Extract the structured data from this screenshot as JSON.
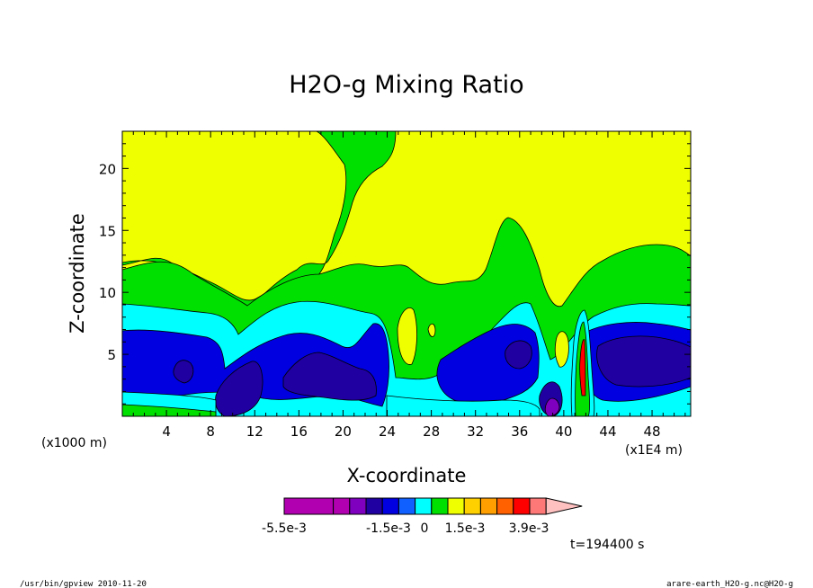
{
  "chart_data": {
    "type": "heatmap",
    "title": "H2O-g Mixing Ratio",
    "xlabel": "X-coordinate",
    "ylabel": "Z-coordinate",
    "x_unit_note": "(x1E4 m)",
    "y_unit_note": "(x1000 m)",
    "xlim": [
      0,
      51.5
    ],
    "ylim": [
      0,
      23
    ],
    "x_ticks": [
      "4",
      "8",
      "12",
      "16",
      "20",
      "24",
      "28",
      "32",
      "36",
      "40",
      "44",
      "48"
    ],
    "y_ticks": [
      "5",
      "10",
      "15",
      "20"
    ],
    "colorbar": {
      "colors": [
        "#b000b0",
        "#b000b0",
        "#8000c0",
        "#2000a0",
        "#0000e0",
        "#1060ff",
        "#00ffff",
        "#00e000",
        "#f0ff00",
        "#ffd000",
        "#ffa000",
        "#ff6000",
        "#ff0000",
        "#ff7878",
        "#ffc0c0"
      ],
      "tick_labels": [
        "-5.5e-3",
        "-1.5e-3",
        "0",
        "1.5e-3",
        "3.9e-3"
      ]
    },
    "time_label": "t=194400 s"
  },
  "footer": {
    "left": "/usr/bin/gpview   2010-11-20",
    "right": "arare-earth_H2O-g.nc@H2O-g"
  }
}
